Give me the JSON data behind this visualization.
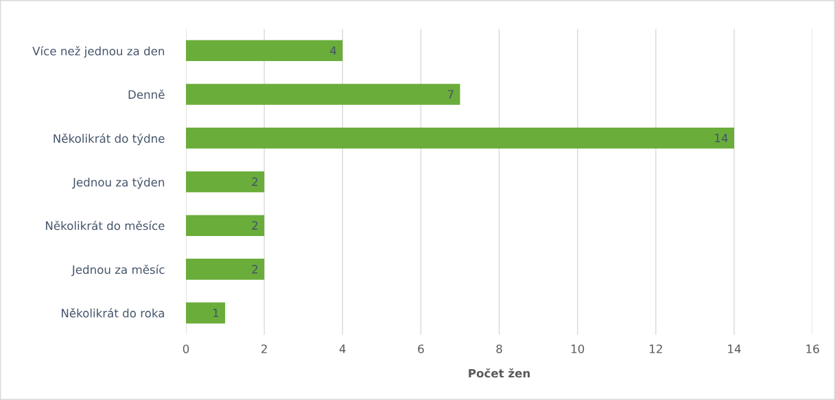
{
  "chart_data": {
    "type": "bar",
    "orientation": "horizontal",
    "xlabel": "Počet žen",
    "categories": [
      "Více než jednou za den",
      "Denně",
      "Několikrát do týdne",
      "Jednou za týden",
      "Několikrát do měsíce",
      "Jednou za měsíc",
      "Několikrát do roka"
    ],
    "values": [
      4,
      7,
      14,
      2,
      2,
      2,
      1
    ],
    "color": "#6aad3a",
    "xlim": [
      0,
      16
    ],
    "xticks": [
      0,
      2,
      4,
      6,
      8,
      10,
      12,
      14,
      16
    ],
    "grid": "x",
    "data_labels": true
  }
}
